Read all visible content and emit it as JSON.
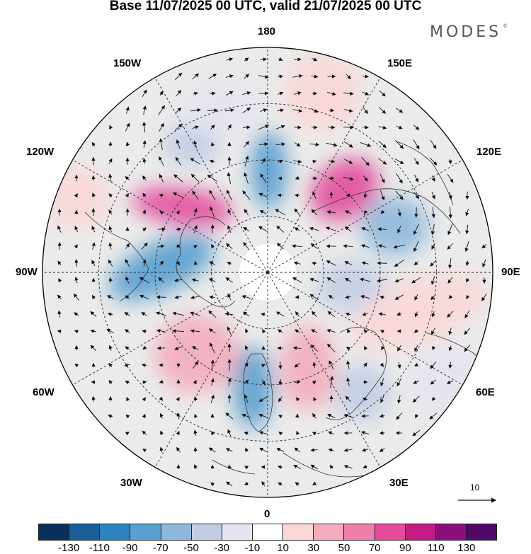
{
  "title": "Base 11/07/2025 00 UTC, valid 21/07/2025 00 UTC",
  "brand": "MODES",
  "brand_mark": "©",
  "lon_labels": {
    "top": "180",
    "bottom": "0",
    "left": "90W",
    "right": "90E",
    "ul1": "150W",
    "ul2": "120W",
    "ur1": "150E",
    "ur2": "120E",
    "ll1": "60W",
    "ll2": "30W",
    "lr1": "60E",
    "lr2": "30E"
  },
  "reference_vector": "10",
  "legend": {
    "colors": [
      "#08305a",
      "#175f96",
      "#2c83bf",
      "#5a9fcf",
      "#8fb8dc",
      "#c2cde4",
      "#e6e4f0",
      "#ffffff",
      "#fbd7d7",
      "#f4acbc",
      "#ee7eaa",
      "#e24c9b",
      "#c31a84",
      "#8a0e7c",
      "#4f0a69"
    ],
    "ticks": [
      "-130",
      "-110",
      "-90",
      "-70",
      "-50",
      "-30",
      "-10",
      "10",
      "30",
      "50",
      "70",
      "90",
      "110",
      "130"
    ]
  },
  "anomalies": [
    {
      "name": "blob-east-siberia-positive",
      "value": 75
    },
    {
      "name": "blob-canada-positive",
      "value": 75
    },
    {
      "name": "blob-bering-negative",
      "value": -70
    },
    {
      "name": "blob-alaska-negative",
      "value": -30
    },
    {
      "name": "blob-greenland-west-negative",
      "value": -70
    },
    {
      "name": "blob-east-asia-negative",
      "value": -55
    },
    {
      "name": "blob-siberia-negative",
      "value": -40
    },
    {
      "name": "blob-atlantic-negative",
      "value": -70
    },
    {
      "name": "blob-north-atlantic-positive",
      "value": 45
    },
    {
      "name": "blob-europe-positive",
      "value": 40
    },
    {
      "name": "blob-russia-positive",
      "value": 25
    },
    {
      "name": "blob-caspian-negative",
      "value": -40
    },
    {
      "name": "blob-central-asia-negative",
      "value": -25
    },
    {
      "name": "blob-north-pacific-positive",
      "value": 25
    },
    {
      "name": "blob-pacific-negative",
      "value": -15
    },
    {
      "name": "blob-east-pacific-positive",
      "value": 20
    }
  ]
}
